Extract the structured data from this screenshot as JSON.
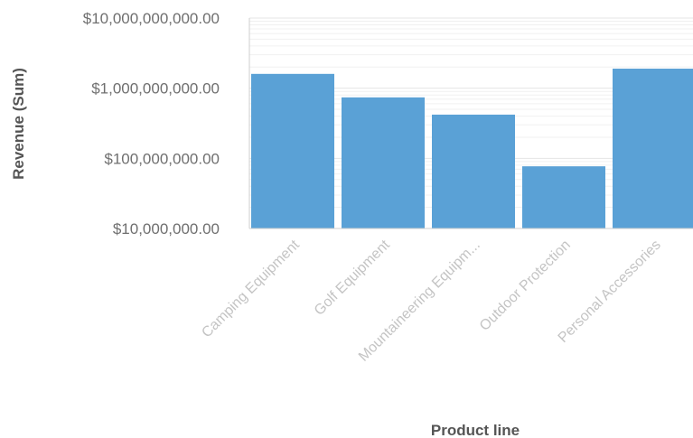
{
  "chart_data": {
    "type": "bar",
    "categories": [
      "Camping Equipment",
      "Golf Equipment",
      "Mountaineering Equipm...",
      "Outdoor Protection",
      "Personal Accessories"
    ],
    "values": [
      1600000000,
      740000000,
      420000000,
      77000000,
      1900000000
    ],
    "xlabel": "Product line",
    "ylabel": "Revenue (Sum)",
    "yscale": "log",
    "ylim": [
      10000000,
      10000000000
    ],
    "yticks": [
      10000000,
      100000000,
      1000000000,
      10000000000
    ],
    "ytick_labels": [
      "$10,000,000.00",
      "$100,000,000.00",
      "$1,000,000,000.00",
      "$10,000,000,000.00"
    ],
    "grid": true,
    "legend": "none",
    "colors": {
      "bar": "#5aa1d6"
    }
  }
}
